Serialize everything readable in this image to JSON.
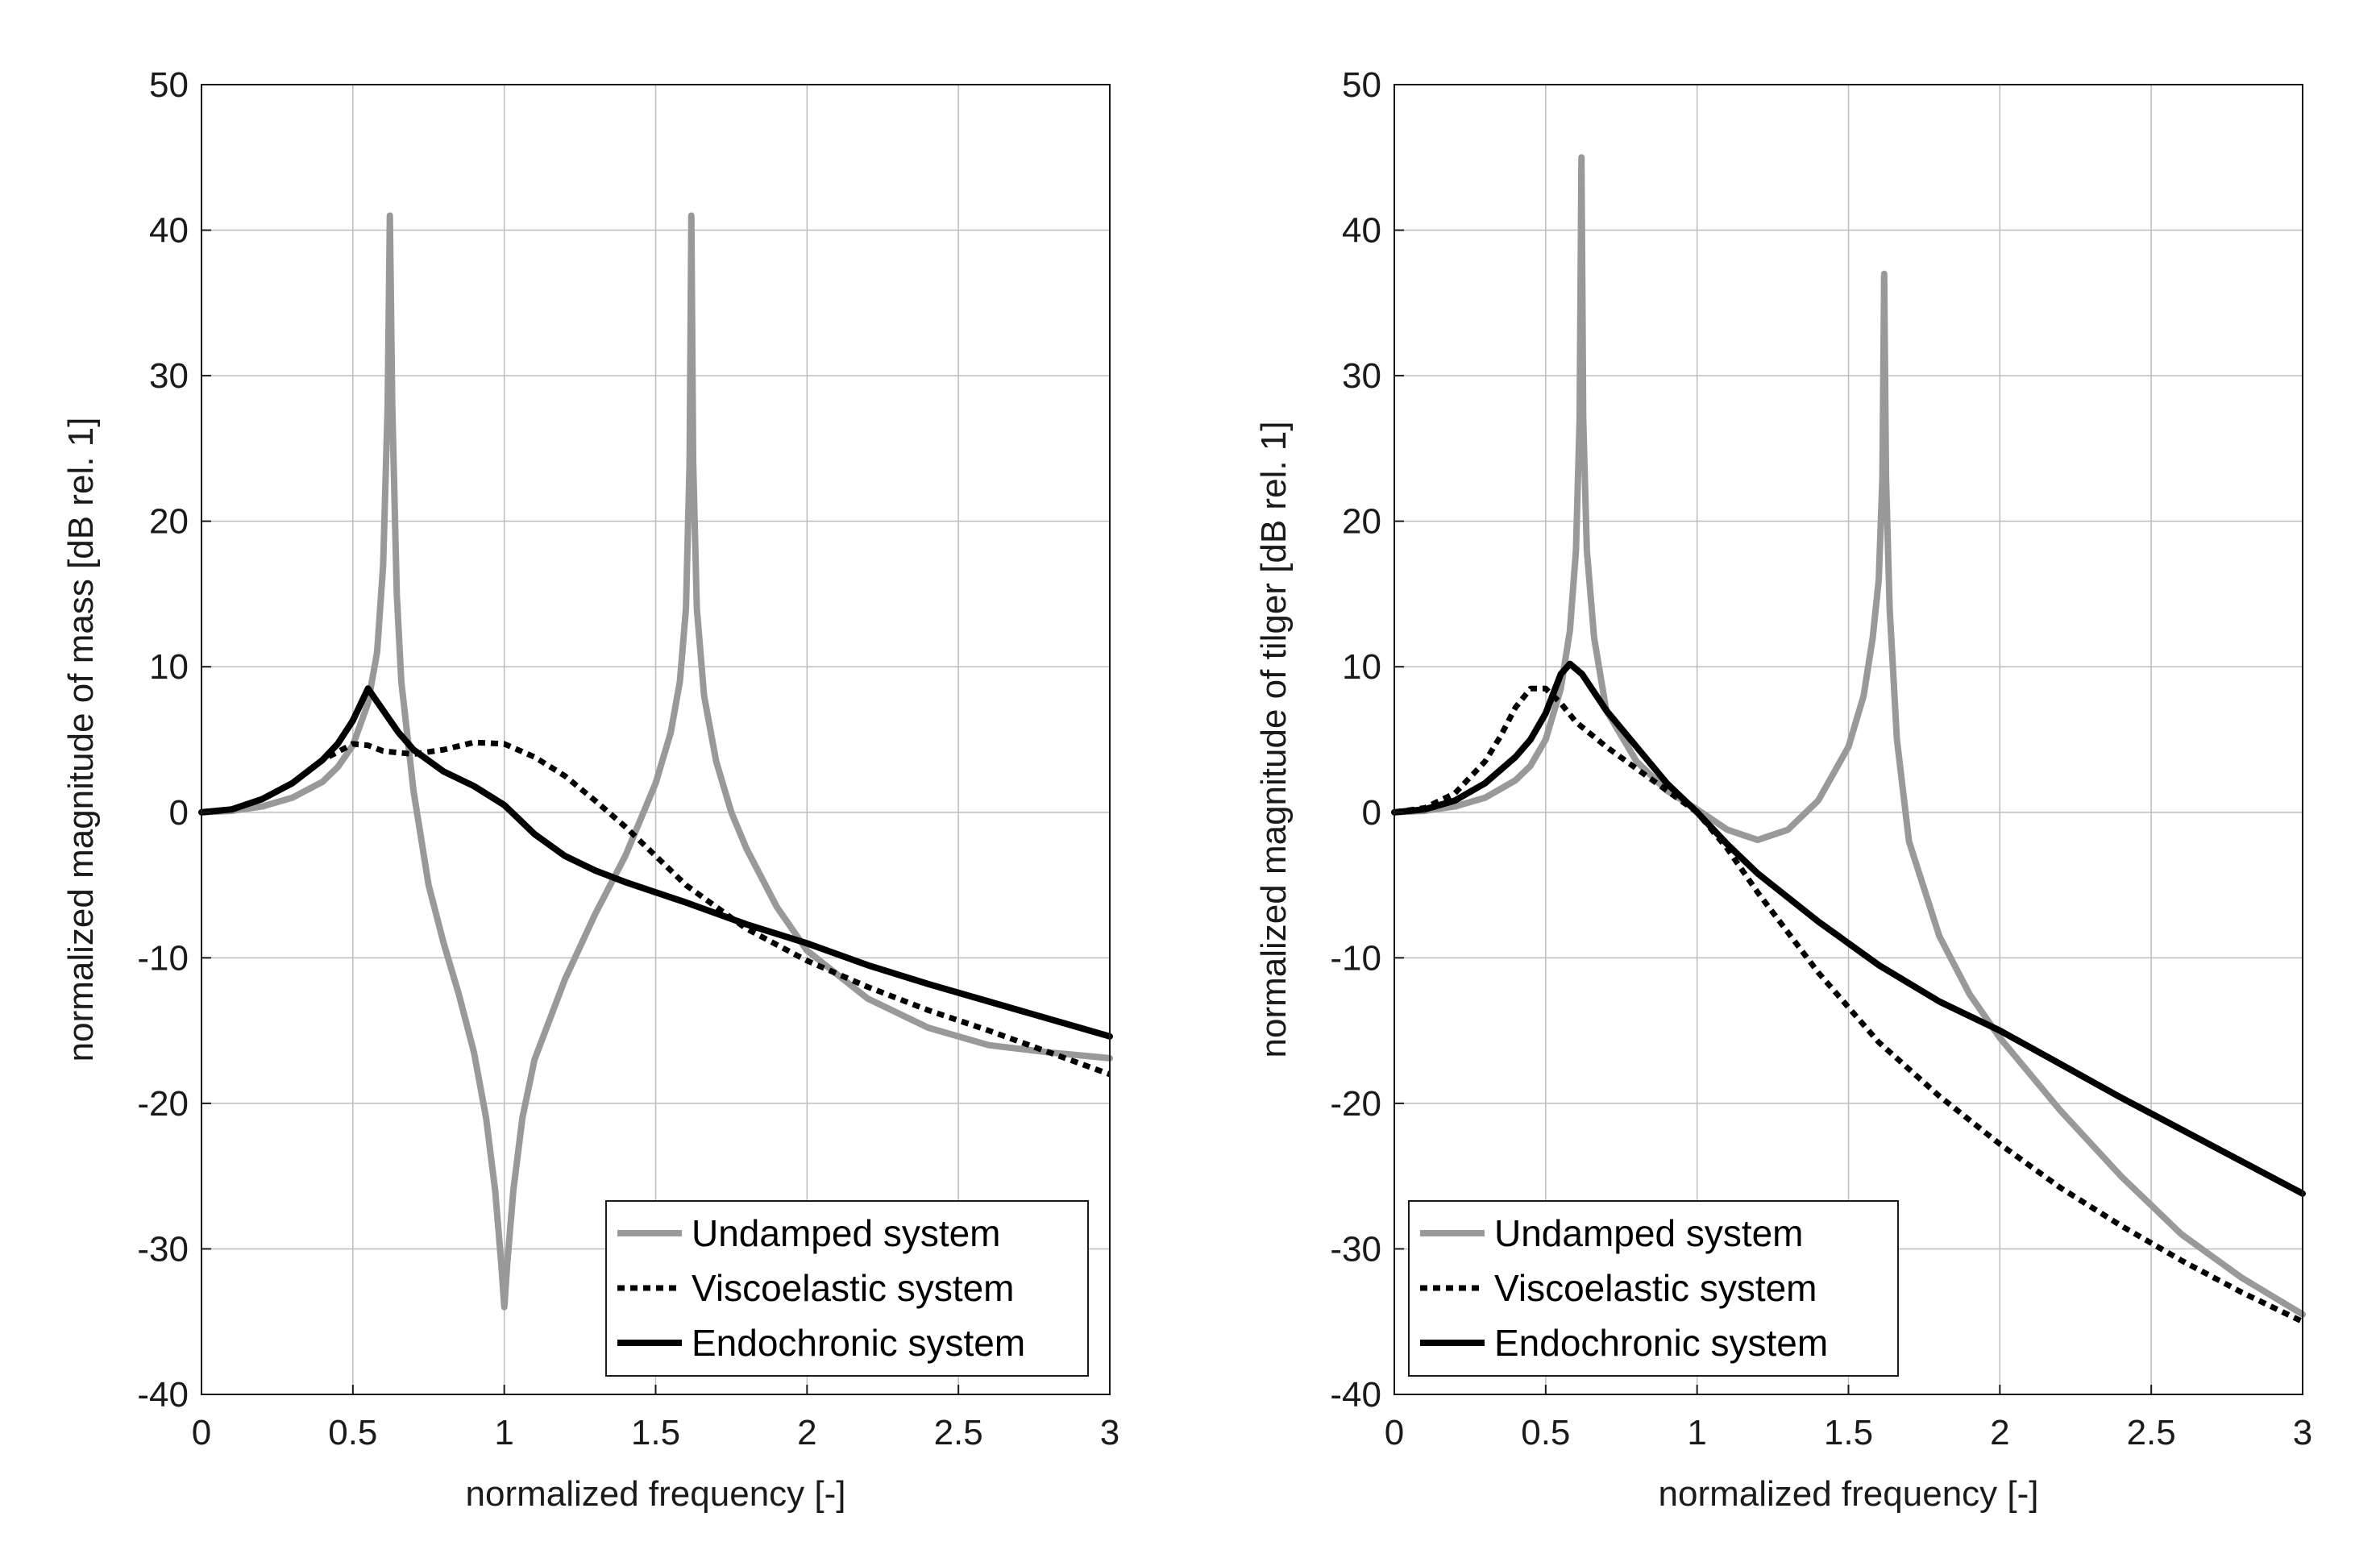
{
  "chart_data": [
    {
      "type": "line",
      "title": "",
      "xlabel": "normalized frequency [-]",
      "ylabel": "normalized magnitude of mass [dB rel. 1]",
      "xlim": [
        0,
        3
      ],
      "ylim": [
        -40,
        50
      ],
      "xticks": [
        0,
        0.5,
        1,
        1.5,
        2,
        2.5,
        3
      ],
      "xtick_labels": [
        "0",
        "0.5",
        "1",
        "1.5",
        "2",
        "2.5",
        "3"
      ],
      "yticks": [
        -40,
        -30,
        -20,
        -10,
        0,
        10,
        20,
        30,
        40,
        50
      ],
      "ytick_labels": [
        "-40",
        "-30",
        "-20",
        "-10",
        "0",
        "10",
        "20",
        "30",
        "40",
        "50"
      ],
      "grid": true,
      "legend_position": "bottom-right",
      "series": [
        {
          "name": "Undamped system",
          "color": "#999999",
          "style": "solid",
          "x": [
            0,
            0.1,
            0.2,
            0.3,
            0.4,
            0.45,
            0.5,
            0.55,
            0.58,
            0.6,
            0.615,
            0.622,
            0.63,
            0.645,
            0.66,
            0.7,
            0.75,
            0.8,
            0.85,
            0.9,
            0.94,
            0.97,
            0.99,
            1.0,
            1.01,
            1.03,
            1.06,
            1.1,
            1.2,
            1.3,
            1.4,
            1.5,
            1.55,
            1.58,
            1.6,
            1.612,
            1.618,
            1.624,
            1.636,
            1.66,
            1.7,
            1.75,
            1.8,
            1.9,
            2.0,
            2.2,
            2.4,
            2.6,
            2.8,
            3.0
          ],
          "y": [
            0,
            0.1,
            0.4,
            1.0,
            2.1,
            3.1,
            4.6,
            7.5,
            11.0,
            17.0,
            28.0,
            41.0,
            28.0,
            15.0,
            9.0,
            1.5,
            -5.0,
            -9.0,
            -12.5,
            -16.5,
            -21.0,
            -26.0,
            -31.0,
            -34.0,
            -31.0,
            -26.0,
            -21.0,
            -17.0,
            -11.5,
            -7.0,
            -3.0,
            2.0,
            5.5,
            9.0,
            14.0,
            24.0,
            41.0,
            24.0,
            14.0,
            8.0,
            3.5,
            0.0,
            -2.5,
            -6.5,
            -9.5,
            -12.8,
            -14.8,
            -16.0,
            -16.5,
            -16.9
          ]
        },
        {
          "name": "Viscoelastic system",
          "color": "#000000",
          "style": "dotted",
          "x": [
            0,
            0.1,
            0.2,
            0.3,
            0.4,
            0.5,
            0.55,
            0.6,
            0.7,
            0.8,
            0.9,
            1.0,
            1.1,
            1.2,
            1.3,
            1.4,
            1.5,
            1.6,
            1.8,
            2.0,
            2.2,
            2.4,
            2.6,
            2.8,
            3.0
          ],
          "y": [
            0,
            0.2,
            0.9,
            2.0,
            3.6,
            4.7,
            4.6,
            4.2,
            4.0,
            4.3,
            4.8,
            4.7,
            3.8,
            2.5,
            0.8,
            -1.0,
            -3.0,
            -5.0,
            -8.0,
            -10.2,
            -12.0,
            -13.6,
            -15.0,
            -16.5,
            -18.0
          ]
        },
        {
          "name": "Endochronic system",
          "color": "#000000",
          "style": "solid",
          "x": [
            0,
            0.1,
            0.2,
            0.3,
            0.4,
            0.45,
            0.5,
            0.55,
            0.6,
            0.65,
            0.7,
            0.8,
            0.9,
            1.0,
            1.05,
            1.1,
            1.2,
            1.3,
            1.4,
            1.6,
            1.8,
            2.0,
            2.2,
            2.4,
            2.6,
            2.8,
            3.0
          ],
          "y": [
            0,
            0.2,
            0.9,
            2.0,
            3.6,
            4.7,
            6.3,
            8.5,
            7.0,
            5.5,
            4.3,
            2.8,
            1.8,
            0.5,
            -0.5,
            -1.5,
            -3.0,
            -4.0,
            -4.8,
            -6.2,
            -7.7,
            -9.0,
            -10.5,
            -11.8,
            -13.0,
            -14.2,
            -15.4
          ]
        }
      ]
    },
    {
      "type": "line",
      "title": "",
      "xlabel": "normalized frequency [-]",
      "ylabel": "normalized magnitude of tilger [dB rel. 1]",
      "xlim": [
        0,
        3
      ],
      "ylim": [
        -40,
        50
      ],
      "xticks": [
        0,
        0.5,
        1,
        1.5,
        2,
        2.5,
        3
      ],
      "xtick_labels": [
        "0",
        "0.5",
        "1",
        "1.5",
        "2",
        "2.5",
        "3"
      ],
      "yticks": [
        -40,
        -30,
        -20,
        -10,
        0,
        10,
        20,
        30,
        40,
        50
      ],
      "ytick_labels": [
        "-40",
        "-30",
        "-20",
        "-10",
        "0",
        "10",
        "20",
        "30",
        "40",
        "50"
      ],
      "grid": true,
      "legend_position": "bottom-left",
      "series": [
        {
          "name": "Undamped system",
          "color": "#999999",
          "style": "solid",
          "x": [
            0,
            0.1,
            0.2,
            0.3,
            0.4,
            0.45,
            0.5,
            0.55,
            0.58,
            0.6,
            0.612,
            0.618,
            0.624,
            0.636,
            0.66,
            0.7,
            0.8,
            0.9,
            1.0,
            1.1,
            1.2,
            1.3,
            1.4,
            1.5,
            1.55,
            1.58,
            1.6,
            1.612,
            1.618,
            1.624,
            1.636,
            1.66,
            1.7,
            1.8,
            1.9,
            2.0,
            2.2,
            2.4,
            2.6,
            2.8,
            3.0
          ],
          "y": [
            0,
            0.1,
            0.4,
            1.0,
            2.2,
            3.2,
            5.0,
            8.5,
            12.5,
            18.0,
            27.0,
            45.0,
            27.0,
            18.0,
            12.0,
            7.0,
            3.5,
            1.5,
            0.2,
            -1.2,
            -1.9,
            -1.2,
            0.8,
            4.5,
            8.0,
            12.0,
            16.0,
            23.0,
            37.0,
            23.0,
            14.0,
            5.0,
            -2.0,
            -8.5,
            -12.5,
            -15.5,
            -20.5,
            -25.0,
            -29.0,
            -32.0,
            -34.5
          ]
        },
        {
          "name": "Viscoelastic system",
          "color": "#000000",
          "style": "dotted",
          "x": [
            0,
            0.1,
            0.2,
            0.3,
            0.35,
            0.4,
            0.45,
            0.5,
            0.55,
            0.6,
            0.7,
            0.8,
            0.9,
            1.0,
            1.1,
            1.2,
            1.4,
            1.6,
            1.8,
            2.0,
            2.2,
            2.4,
            2.6,
            2.8,
            3.0
          ],
          "y": [
            0,
            0.3,
            1.3,
            3.5,
            5.2,
            7.2,
            8.5,
            8.5,
            7.5,
            6.2,
            4.5,
            3.0,
            1.5,
            0.0,
            -2.5,
            -5.5,
            -11.0,
            -15.8,
            -19.5,
            -22.8,
            -25.8,
            -28.4,
            -30.8,
            -33.0,
            -35.0
          ]
        },
        {
          "name": "Endochronic system",
          "color": "#000000",
          "style": "solid",
          "x": [
            0,
            0.1,
            0.2,
            0.3,
            0.4,
            0.45,
            0.5,
            0.55,
            0.58,
            0.62,
            0.7,
            0.8,
            0.9,
            1.0,
            1.1,
            1.2,
            1.4,
            1.6,
            1.8,
            2.0,
            2.2,
            2.4,
            2.6,
            2.8,
            3.0
          ],
          "y": [
            0,
            0.2,
            0.8,
            2.0,
            3.8,
            5.0,
            6.8,
            9.5,
            10.2,
            9.5,
            7.0,
            4.5,
            2.0,
            0.0,
            -2.2,
            -4.2,
            -7.5,
            -10.5,
            -13.0,
            -15.0,
            -17.3,
            -19.6,
            -21.8,
            -24.0,
            -26.2
          ]
        }
      ]
    }
  ]
}
